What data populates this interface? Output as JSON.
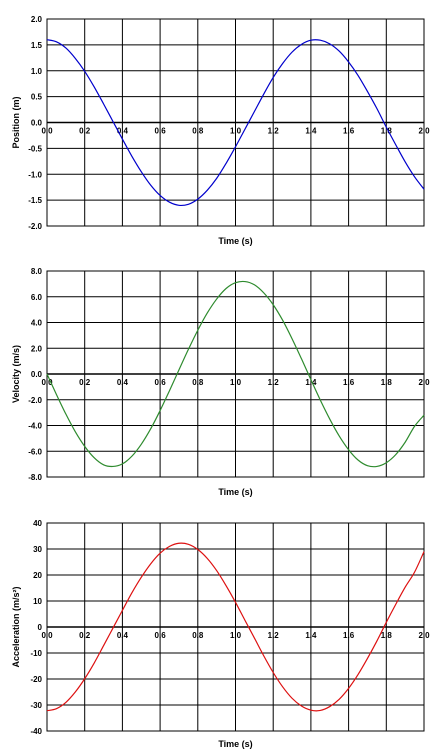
{
  "chart_data": [
    {
      "type": "line",
      "xlabel": "Time (s)",
      "ylabel": "Position (m)",
      "xlim": [
        0,
        2
      ],
      "ylim": [
        -2,
        2
      ],
      "xticks": [
        0,
        0.2,
        0.4,
        0.6,
        0.8,
        1.0,
        1.2,
        1.4,
        1.6,
        1.8,
        2.0
      ],
      "xtick_labels": [
        "0.0",
        "0.2",
        "0.4",
        "0.6",
        "0.8",
        "1.0",
        "1.2",
        "1.4",
        "1.6",
        "1.8",
        "2.0"
      ],
      "yticks": [
        2,
        1.5,
        1,
        0.5,
        0,
        -0.5,
        -1,
        -1.5,
        -2
      ],
      "ytick_labels": [
        "2.0",
        "1.5",
        "1.0",
        "0.5",
        "0.0",
        "-0.5",
        "-1.0",
        "-1.5",
        "-2.0"
      ],
      "grid": true,
      "color": "#0000cc",
      "series": [
        {
          "x": [
            0.0,
            0.05,
            0.1,
            0.15,
            0.2,
            0.25,
            0.3,
            0.35,
            0.4,
            0.45,
            0.5,
            0.55,
            0.6,
            0.65,
            0.7,
            0.75,
            0.8,
            0.85,
            0.9,
            0.95,
            1.0,
            1.05,
            1.1,
            1.15,
            1.2,
            1.25,
            1.3,
            1.35,
            1.4,
            1.45,
            1.5,
            1.55,
            1.6,
            1.65,
            1.7,
            1.75,
            1.8,
            1.85,
            1.9,
            1.95,
            2.0
          ],
          "values": [
            1.6,
            1.56,
            1.44,
            1.24,
            0.99,
            0.69,
            0.36,
            0.02,
            -0.32,
            -0.65,
            -0.95,
            -1.21,
            -1.41,
            -1.54,
            -1.6,
            -1.58,
            -1.48,
            -1.31,
            -1.08,
            -0.79,
            -0.47,
            -0.13,
            0.21,
            0.55,
            0.87,
            1.14,
            1.36,
            1.51,
            1.59,
            1.59,
            1.52,
            1.38,
            1.17,
            0.91,
            0.6,
            0.27,
            -0.09,
            -0.43,
            -0.76,
            -1.05,
            -1.29
          ]
        }
      ]
    },
    {
      "type": "line",
      "xlabel": "Time (s)",
      "ylabel": "Velocity (m/s)",
      "xlim": [
        0,
        2
      ],
      "ylim": [
        -8,
        8
      ],
      "xticks": [
        0,
        0.2,
        0.4,
        0.6,
        0.8,
        1.0,
        1.2,
        1.4,
        1.6,
        1.8,
        2.0
      ],
      "xtick_labels": [
        "0.0",
        "0.2",
        "0.4",
        "0.6",
        "0.8",
        "1.0",
        "1.2",
        "1.4",
        "1.6",
        "1.8",
        "2.0"
      ],
      "yticks": [
        8,
        6,
        4,
        2,
        0,
        -2,
        -4,
        -6,
        -8
      ],
      "ytick_labels": [
        "8.0",
        "6.0",
        "4.0",
        "2.0",
        "0.0",
        "-2.0",
        "-4.0",
        "-6.0",
        "-8.0"
      ],
      "grid": true,
      "color": "#2e8b2e",
      "series": [
        {
          "x": [
            0.0,
            0.05,
            0.1,
            0.15,
            0.2,
            0.25,
            0.3,
            0.35,
            0.4,
            0.45,
            0.5,
            0.55,
            0.6,
            0.65,
            0.7,
            0.75,
            0.8,
            0.85,
            0.9,
            0.95,
            1.0,
            1.05,
            1.1,
            1.15,
            1.2,
            1.25,
            1.3,
            1.35,
            1.4,
            1.45,
            1.5,
            1.55,
            1.6,
            1.65,
            1.7,
            1.75,
            1.8,
            1.85,
            1.9,
            1.95,
            2.0
          ],
          "values": [
            0.0,
            -1.59,
            -3.11,
            -4.48,
            -5.62,
            -6.5,
            -7.05,
            -7.18,
            -6.98,
            -6.39,
            -5.46,
            -4.26,
            -2.84,
            -1.29,
            0.32,
            1.91,
            3.4,
            4.73,
            5.82,
            6.64,
            7.09,
            7.18,
            6.93,
            6.3,
            5.38,
            4.18,
            2.74,
            1.18,
            -0.44,
            -2.03,
            -3.5,
            -4.81,
            -5.88,
            -6.68,
            -7.12,
            -7.18,
            -6.89,
            -6.26,
            -5.3,
            -4.06,
            -3.2
          ]
        }
      ]
    },
    {
      "type": "line",
      "xlabel": "Time (s)",
      "ylabel": "Acceleration (m/s²)",
      "xlim": [
        0,
        2
      ],
      "ylim": [
        -40,
        40
      ],
      "xticks": [
        0,
        0.2,
        0.4,
        0.6,
        0.8,
        1.0,
        1.2,
        1.4,
        1.6,
        1.8,
        2.0
      ],
      "xtick_labels": [
        "0.0",
        "0.2",
        "0.4",
        "0.6",
        "0.8",
        "1.0",
        "1.2",
        "1.4",
        "1.6",
        "1.8",
        "2.0"
      ],
      "yticks": [
        40,
        30,
        20,
        10,
        0,
        -10,
        -20,
        -30,
        -40
      ],
      "ytick_labels": [
        "40",
        "30",
        "20",
        "10",
        "0",
        "-10",
        "-20",
        "-30",
        "-40"
      ],
      "grid": true,
      "color": "#dd1111",
      "series": [
        {
          "x": [
            0.0,
            0.05,
            0.1,
            0.15,
            0.2,
            0.25,
            0.3,
            0.35,
            0.4,
            0.45,
            0.5,
            0.55,
            0.6,
            0.65,
            0.7,
            0.75,
            0.8,
            0.85,
            0.9,
            0.95,
            1.0,
            1.05,
            1.1,
            1.15,
            1.2,
            1.25,
            1.3,
            1.35,
            1.4,
            1.45,
            1.5,
            1.55,
            1.6,
            1.65,
            1.7,
            1.75,
            1.8,
            1.85,
            1.9,
            1.95,
            2.0
          ],
          "values": [
            -32.2,
            -31.4,
            -29.0,
            -25.0,
            -19.9,
            -13.9,
            -7.2,
            -0.4,
            6.4,
            13.1,
            19.1,
            24.3,
            28.4,
            31.0,
            32.2,
            31.8,
            29.8,
            26.4,
            21.7,
            15.9,
            9.5,
            2.6,
            -4.2,
            -11.1,
            -17.5,
            -23.0,
            -27.4,
            -30.4,
            -32.0,
            -32.1,
            -30.6,
            -27.8,
            -23.6,
            -18.3,
            -12.1,
            -5.4,
            1.8,
            8.7,
            15.3,
            21.1,
            29.0
          ]
        }
      ]
    }
  ]
}
